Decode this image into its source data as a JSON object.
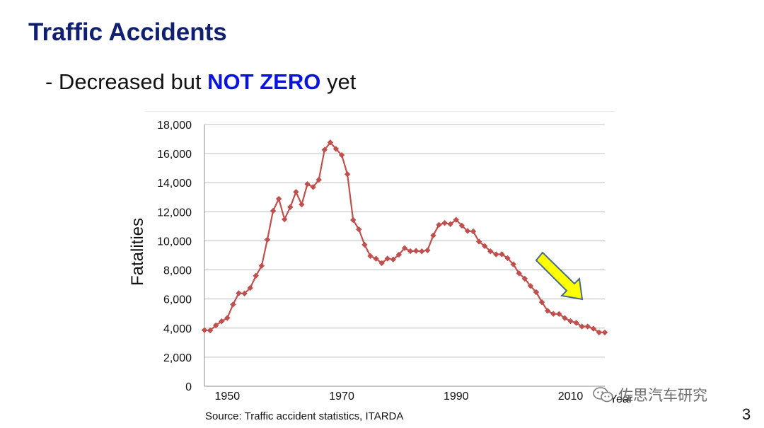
{
  "slide": {
    "title": "Traffic Accidents",
    "subtitle_prefix": "- Decreased but ",
    "subtitle_emphasis": "NOT ZERO",
    "subtitle_suffix": " yet",
    "source": "Source: Traffic accident statistics, ITARDA",
    "page_number": "3",
    "watermark": "佐思汽车研究"
  },
  "colors": {
    "title": "#10206e",
    "emphasis": "#0a14e0",
    "series": "#c0504d",
    "grid": "#bfbfbf",
    "arrow_fill": "#ffff00",
    "arrow_stroke": "#4a6b8a"
  },
  "chart_data": {
    "type": "line",
    "ylabel": "Fatalities",
    "xlabel": "Year",
    "ylim": [
      0,
      18000
    ],
    "xlim": [
      1946,
      2016
    ],
    "yticks": [
      0,
      2000,
      4000,
      6000,
      8000,
      10000,
      12000,
      14000,
      16000,
      18000
    ],
    "ytick_labels": [
      "0",
      "2,000",
      "4,000",
      "6,000",
      "8,000",
      "10,000",
      "12,000",
      "14,000",
      "16,000",
      "18,000"
    ],
    "xticks": [
      1950,
      1970,
      1990,
      2010
    ],
    "xtick_labels": [
      "1950",
      "1970",
      "1990",
      "2010"
    ],
    "grid": "horizontal",
    "marker": "diamond",
    "series": [
      {
        "x": [
          1946,
          1947,
          1948,
          1949,
          1950,
          1951,
          1952,
          1953,
          1954,
          1955,
          1956,
          1957,
          1958,
          1959,
          1960,
          1961,
          1962,
          1963,
          1964,
          1965,
          1966,
          1967,
          1968,
          1969,
          1970,
          1971,
          1972,
          1973,
          1974,
          1975,
          1976,
          1977,
          1978,
          1979,
          1980,
          1981,
          1982,
          1983,
          1984,
          1985,
          1986,
          1987,
          1988,
          1989,
          1990,
          1991,
          1992,
          1993,
          1994,
          1995,
          1996,
          1997,
          1998,
          1999,
          2000,
          2001,
          2002,
          2003,
          2004,
          2005,
          2006,
          2007,
          2008,
          2009,
          2010,
          2011,
          2012,
          2013,
          2014,
          2015,
          2016
        ],
        "values": [
          3860,
          3840,
          4190,
          4470,
          4700,
          5620,
          6400,
          6380,
          6760,
          7600,
          8280,
          10080,
          12060,
          12890,
          11480,
          12320,
          13360,
          12500,
          13900,
          13700,
          14200,
          16260,
          16770,
          16320,
          15900,
          14580,
          11430,
          10790,
          9730,
          8960,
          8770,
          8470,
          8780,
          8720,
          9050,
          9500,
          9290,
          9310,
          9280,
          9350,
          10370,
          11100,
          11230,
          11150,
          11450,
          11050,
          10680,
          10650,
          9950,
          9640,
          9280,
          9070,
          9080,
          8810,
          8390,
          7770,
          7400,
          6900,
          6470,
          5780,
          5190,
          4980,
          4970,
          4690,
          4480,
          4360,
          4110,
          4110,
          3960,
          3700,
          3700
        ]
      }
    ],
    "annotation": {
      "type": "arrow",
      "direction": "down-right"
    }
  }
}
